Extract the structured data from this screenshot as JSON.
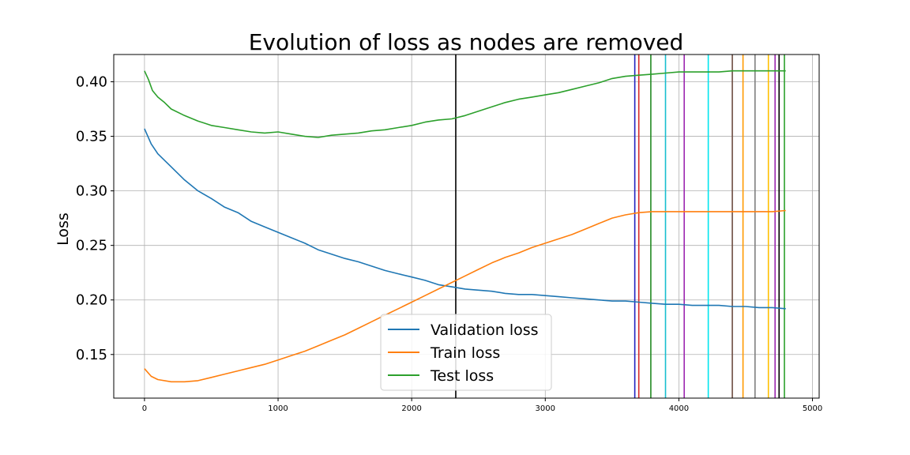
{
  "chart_data": {
    "type": "line",
    "title": "Evolution of loss as nodes are removed",
    "xlabel": "",
    "ylabel": "Loss",
    "xlim": [
      -230,
      5050
    ],
    "ylim": [
      0.11,
      0.425
    ],
    "x_ticks": [
      0,
      1000,
      2000,
      3000,
      4000,
      5000
    ],
    "y_ticks": [
      0.15,
      0.2,
      0.25,
      0.3,
      0.35,
      0.4
    ],
    "y_tick_labels": [
      "0.15",
      "0.20",
      "0.25",
      "0.30",
      "0.35",
      "0.40"
    ],
    "grid": true,
    "legend_position": "bottom-center",
    "series": [
      {
        "name": "Validation loss",
        "color": "#1f77b4",
        "x": [
          0,
          50,
          100,
          200,
          300,
          400,
          500,
          600,
          700,
          800,
          900,
          1000,
          1100,
          1200,
          1300,
          1400,
          1500,
          1600,
          1700,
          1800,
          1900,
          2000,
          2100,
          2200,
          2300,
          2400,
          2500,
          2600,
          2700,
          2800,
          2900,
          3000,
          3100,
          3200,
          3300,
          3400,
          3500,
          3600,
          3700,
          3800,
          3900,
          4000,
          4100,
          4200,
          4300,
          4400,
          4500,
          4600,
          4700,
          4800
        ],
        "y": [
          0.357,
          0.343,
          0.334,
          0.322,
          0.31,
          0.3,
          0.293,
          0.285,
          0.28,
          0.272,
          0.267,
          0.262,
          0.257,
          0.252,
          0.246,
          0.242,
          0.238,
          0.235,
          0.231,
          0.227,
          0.224,
          0.221,
          0.218,
          0.214,
          0.212,
          0.21,
          0.209,
          0.208,
          0.206,
          0.205,
          0.205,
          0.204,
          0.203,
          0.202,
          0.201,
          0.2,
          0.199,
          0.199,
          0.198,
          0.197,
          0.196,
          0.196,
          0.195,
          0.195,
          0.195,
          0.194,
          0.194,
          0.193,
          0.193,
          0.192
        ]
      },
      {
        "name": "Train loss",
        "color": "#ff7f0e",
        "x": [
          0,
          50,
          100,
          200,
          300,
          400,
          500,
          600,
          700,
          800,
          900,
          1000,
          1100,
          1200,
          1300,
          1400,
          1500,
          1600,
          1700,
          1800,
          1900,
          2000,
          2100,
          2200,
          2300,
          2400,
          2500,
          2600,
          2700,
          2800,
          2900,
          3000,
          3100,
          3200,
          3300,
          3400,
          3500,
          3600,
          3700,
          3800,
          3900,
          4000,
          4100,
          4200,
          4300,
          4400,
          4500,
          4600,
          4700,
          4800
        ],
        "y": [
          0.137,
          0.13,
          0.127,
          0.125,
          0.125,
          0.126,
          0.129,
          0.132,
          0.135,
          0.138,
          0.141,
          0.145,
          0.149,
          0.153,
          0.158,
          0.163,
          0.168,
          0.174,
          0.18,
          0.186,
          0.192,
          0.198,
          0.204,
          0.21,
          0.216,
          0.222,
          0.228,
          0.234,
          0.239,
          0.243,
          0.248,
          0.252,
          0.256,
          0.26,
          0.265,
          0.27,
          0.275,
          0.278,
          0.28,
          0.281,
          0.281,
          0.281,
          0.281,
          0.281,
          0.281,
          0.281,
          0.281,
          0.281,
          0.281,
          0.282
        ]
      },
      {
        "name": "Test loss",
        "color": "#2ca02c",
        "x": [
          0,
          30,
          60,
          100,
          150,
          200,
          300,
          400,
          500,
          600,
          700,
          800,
          900,
          1000,
          1100,
          1200,
          1300,
          1400,
          1500,
          1600,
          1700,
          1800,
          1900,
          2000,
          2100,
          2200,
          2300,
          2400,
          2500,
          2600,
          2700,
          2800,
          2900,
          3000,
          3100,
          3200,
          3300,
          3400,
          3500,
          3600,
          3700,
          3800,
          3900,
          4000,
          4100,
          4200,
          4300,
          4400,
          4500,
          4600,
          4700,
          4800
        ],
        "y": [
          0.41,
          0.402,
          0.392,
          0.386,
          0.381,
          0.375,
          0.369,
          0.364,
          0.36,
          0.358,
          0.356,
          0.354,
          0.353,
          0.354,
          0.352,
          0.35,
          0.349,
          0.351,
          0.352,
          0.353,
          0.355,
          0.356,
          0.358,
          0.36,
          0.363,
          0.365,
          0.366,
          0.369,
          0.373,
          0.377,
          0.381,
          0.384,
          0.386,
          0.388,
          0.39,
          0.393,
          0.396,
          0.399,
          0.403,
          0.405,
          0.406,
          0.407,
          0.408,
          0.409,
          0.409,
          0.409,
          0.409,
          0.41,
          0.41,
          0.41,
          0.41,
          0.41
        ]
      }
    ],
    "vertical_lines": [
      {
        "x": 2330,
        "color": "#000000"
      },
      {
        "x": 3670,
        "color": "#2020c0"
      },
      {
        "x": 3700,
        "color": "#d62728"
      },
      {
        "x": 3790,
        "color": "#228b22"
      },
      {
        "x": 3900,
        "color": "#17becf"
      },
      {
        "x": 4040,
        "color": "#9c27b0"
      },
      {
        "x": 4220,
        "color": "#00e5ee"
      },
      {
        "x": 4400,
        "color": "#6d4c41"
      },
      {
        "x": 4480,
        "color": "#ff9900"
      },
      {
        "x": 4570,
        "color": "#7f7f7f"
      },
      {
        "x": 4670,
        "color": "#ffbf00"
      },
      {
        "x": 4720,
        "color": "#9c27b0"
      },
      {
        "x": 4750,
        "color": "#000000"
      },
      {
        "x": 4790,
        "color": "#2ca02c"
      }
    ]
  }
}
